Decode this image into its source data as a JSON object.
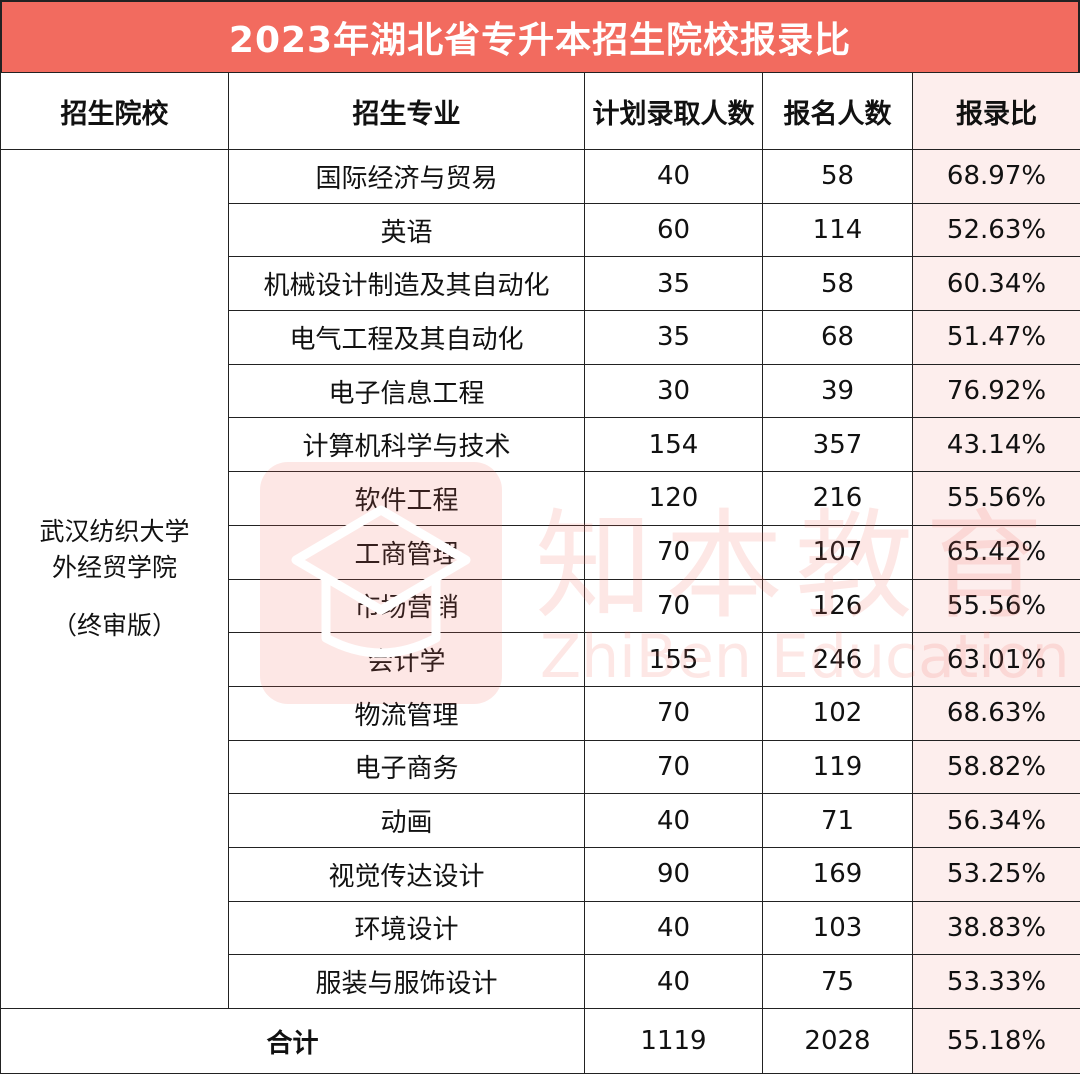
{
  "title": "2023年湖北省专升本招生院校报录比",
  "headers": {
    "school": "招生院校",
    "major": "招生专业",
    "plan": "计划录取人数",
    "applicants": "报名人数",
    "ratio": "报录比"
  },
  "school": {
    "line1": "武汉纺织大学",
    "line2": "外经贸学院",
    "line3": "（终审版）"
  },
  "rows": [
    {
      "major": "国际经济与贸易",
      "plan": "40",
      "applicants": "58",
      "ratio": "68.97%"
    },
    {
      "major": "英语",
      "plan": "60",
      "applicants": "114",
      "ratio": "52.63%"
    },
    {
      "major": "机械设计制造及其自动化",
      "plan": "35",
      "applicants": "58",
      "ratio": "60.34%"
    },
    {
      "major": "电气工程及其自动化",
      "plan": "35",
      "applicants": "68",
      "ratio": "51.47%"
    },
    {
      "major": "电子信息工程",
      "plan": "30",
      "applicants": "39",
      "ratio": "76.92%"
    },
    {
      "major": "计算机科学与技术",
      "plan": "154",
      "applicants": "357",
      "ratio": "43.14%"
    },
    {
      "major": "软件工程",
      "plan": "120",
      "applicants": "216",
      "ratio": "55.56%"
    },
    {
      "major": "工商管理",
      "plan": "70",
      "applicants": "107",
      "ratio": "65.42%"
    },
    {
      "major": "市场营销",
      "plan": "70",
      "applicants": "126",
      "ratio": "55.56%"
    },
    {
      "major": "会计学",
      "plan": "155",
      "applicants": "246",
      "ratio": "63.01%"
    },
    {
      "major": "物流管理",
      "plan": "70",
      "applicants": "102",
      "ratio": "68.63%"
    },
    {
      "major": "电子商务",
      "plan": "70",
      "applicants": "119",
      "ratio": "58.82%"
    },
    {
      "major": "动画",
      "plan": "40",
      "applicants": "71",
      "ratio": "56.34%"
    },
    {
      "major": "视觉传达设计",
      "plan": "90",
      "applicants": "169",
      "ratio": "53.25%"
    },
    {
      "major": "环境设计",
      "plan": "40",
      "applicants": "103",
      "ratio": "38.83%"
    },
    {
      "major": "服装与服饰设计",
      "plan": "40",
      "applicants": "75",
      "ratio": "53.33%"
    }
  ],
  "total": {
    "label": "合计",
    "plan": "1119",
    "applicants": "2028",
    "ratio": "55.18%"
  },
  "watermark": {
    "cn": "知本教育",
    "en": "ZhiBen Education",
    "icon": "graduation-cap-icon"
  },
  "colors": {
    "accent": "#f26b5f",
    "ratio_column": "#fdeeed"
  }
}
